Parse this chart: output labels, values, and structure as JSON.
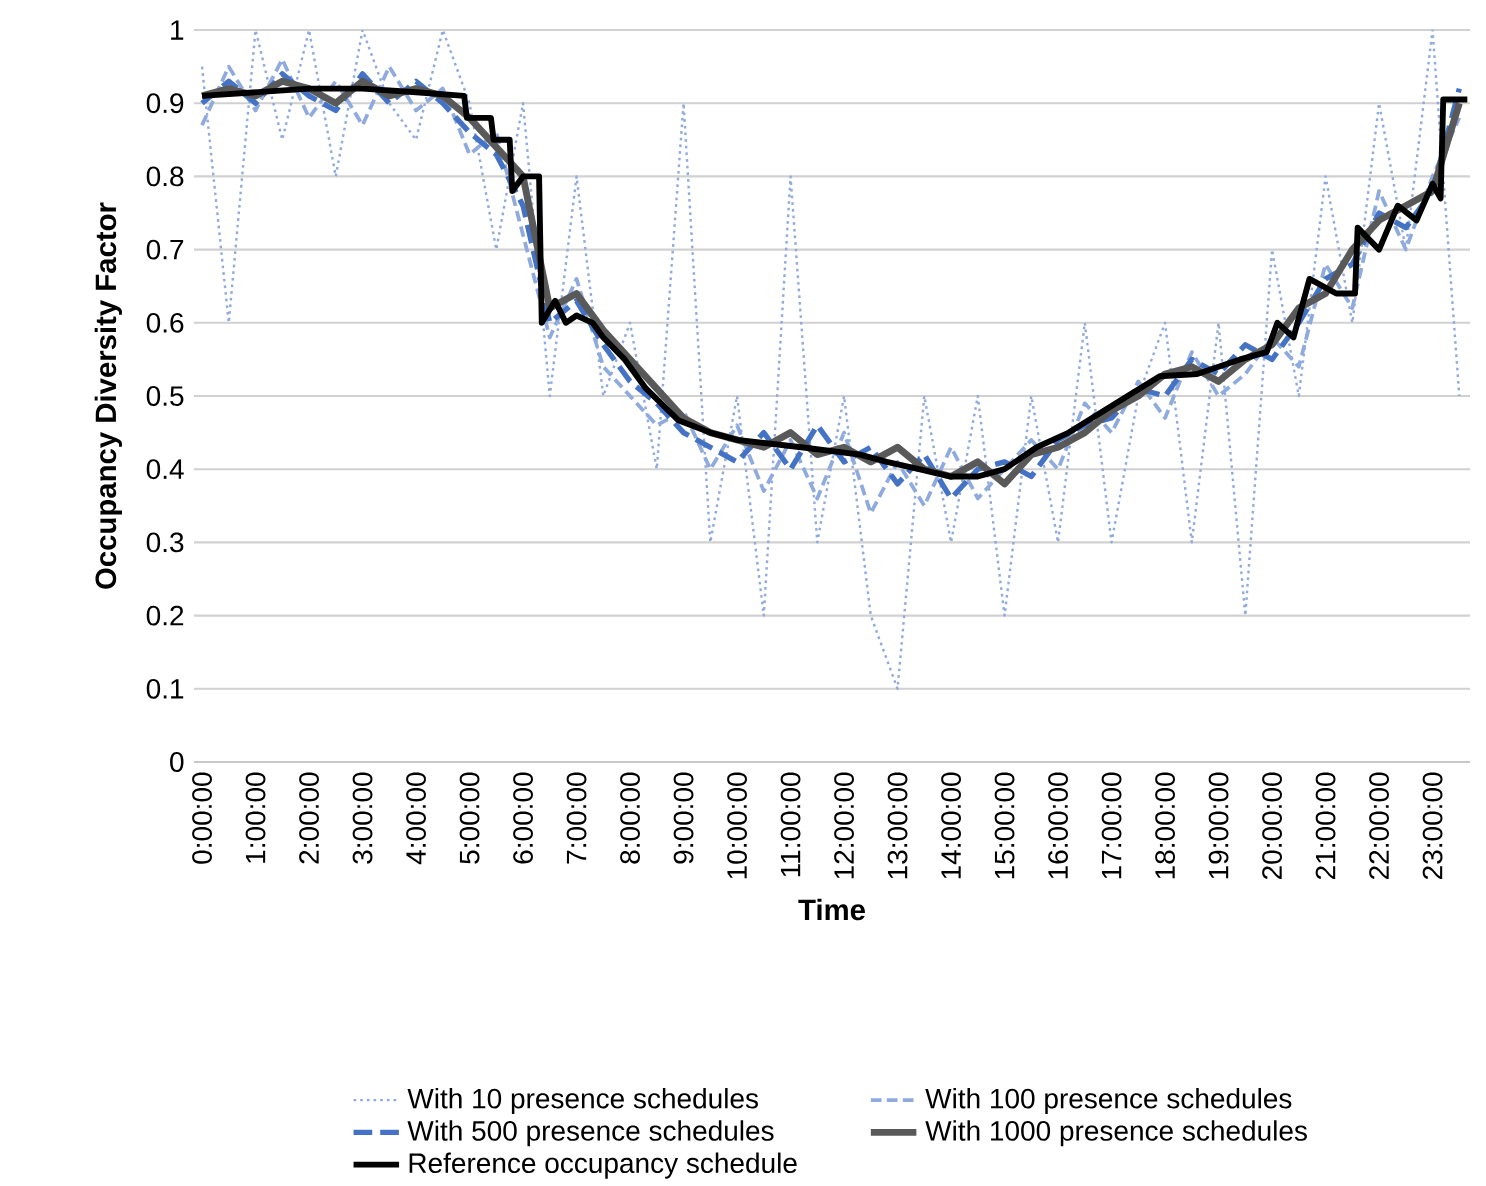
{
  "chart_data": {
    "type": "line",
    "xlabel": "Time",
    "ylabel": "Occupancy Diversity Factor",
    "x": [
      0,
      0.5,
      1,
      1.5,
      2,
      2.5,
      3,
      3.5,
      4,
      4.5,
      5,
      5.5,
      6,
      6.5,
      7,
      7.5,
      8,
      8.5,
      9,
      9.5,
      10,
      10.5,
      11,
      11.5,
      12,
      12.5,
      13,
      13.5,
      14,
      14.5,
      15,
      15.5,
      16,
      16.5,
      17,
      17.5,
      18,
      18.5,
      19,
      19.5,
      20,
      20.5,
      21,
      21.5,
      22,
      22.5,
      23,
      23.5
    ],
    "series": [
      {
        "name": "With 10 presence schedules",
        "color": "#8faadc",
        "line_style": "dotted",
        "values": [
          0.95,
          0.6,
          1.0,
          0.85,
          1.0,
          0.8,
          1.0,
          0.9,
          0.85,
          1.0,
          0.9,
          0.7,
          0.9,
          0.5,
          0.8,
          0.5,
          0.6,
          0.4,
          0.9,
          0.3,
          0.5,
          0.2,
          0.8,
          0.3,
          0.5,
          0.2,
          0.1,
          0.5,
          0.3,
          0.5,
          0.2,
          0.5,
          0.3,
          0.6,
          0.3,
          0.5,
          0.6,
          0.3,
          0.6,
          0.2,
          0.7,
          0.5,
          0.8,
          0.6,
          0.9,
          0.7,
          1.0,
          0.5
        ]
      },
      {
        "name": "With 100 presence schedules",
        "color": "#8faadc",
        "line_style": "dashed",
        "values": [
          0.87,
          0.95,
          0.89,
          0.96,
          0.88,
          0.93,
          0.87,
          0.95,
          0.89,
          0.92,
          0.83,
          0.86,
          0.72,
          0.58,
          0.66,
          0.54,
          0.5,
          0.46,
          0.48,
          0.4,
          0.46,
          0.37,
          0.44,
          0.36,
          0.45,
          0.34,
          0.41,
          0.35,
          0.43,
          0.36,
          0.4,
          0.44,
          0.4,
          0.49,
          0.45,
          0.52,
          0.47,
          0.56,
          0.5,
          0.53,
          0.58,
          0.54,
          0.68,
          0.62,
          0.78,
          0.7,
          0.8,
          0.88
        ]
      },
      {
        "name": "With 500 presence schedules",
        "color": "#4472c4",
        "line_style": "dashed",
        "values": [
          0.9,
          0.93,
          0.9,
          0.94,
          0.91,
          0.89,
          0.94,
          0.9,
          0.93,
          0.9,
          0.86,
          0.83,
          0.76,
          0.6,
          0.63,
          0.57,
          0.52,
          0.49,
          0.45,
          0.43,
          0.41,
          0.45,
          0.4,
          0.46,
          0.41,
          0.43,
          0.38,
          0.42,
          0.36,
          0.4,
          0.41,
          0.39,
          0.44,
          0.46,
          0.47,
          0.51,
          0.5,
          0.55,
          0.53,
          0.57,
          0.55,
          0.6,
          0.66,
          0.68,
          0.75,
          0.73,
          0.78,
          0.92
        ]
      },
      {
        "name": "With 1000 presence schedules",
        "color": "#595959",
        "line_style": "solid",
        "values": [
          0.91,
          0.92,
          0.91,
          0.93,
          0.92,
          0.9,
          0.93,
          0.91,
          0.92,
          0.91,
          0.88,
          0.84,
          0.8,
          0.62,
          0.64,
          0.59,
          0.55,
          0.51,
          0.47,
          0.45,
          0.44,
          0.43,
          0.45,
          0.42,
          0.43,
          0.41,
          0.43,
          0.4,
          0.39,
          0.41,
          0.38,
          0.42,
          0.43,
          0.45,
          0.48,
          0.5,
          0.53,
          0.54,
          0.52,
          0.55,
          0.57,
          0.62,
          0.64,
          0.7,
          0.74,
          0.76,
          0.78,
          0.9
        ]
      },
      {
        "name": "Reference occupancy schedule",
        "color": "#000000",
        "line_style": "solid",
        "x": [
          0,
          1,
          2,
          3,
          4,
          4.9,
          4.95,
          5.4,
          5.45,
          5.75,
          5.8,
          6.0,
          6.3,
          6.35,
          6.6,
          6.8,
          7.0,
          7.3,
          7.5,
          7.9,
          8.3,
          8.9,
          9.5,
          10.0,
          11.2,
          12.3,
          12.8,
          13.4,
          14.0,
          14.5,
          15.0,
          15.6,
          16.2,
          16.75,
          17.3,
          17.9,
          18.6,
          19.0,
          19.4,
          19.9,
          20.1,
          20.4,
          20.7,
          21.2,
          21.55,
          21.6,
          22.0,
          22.35,
          22.7,
          23.0,
          23.15,
          23.2,
          23.65
        ],
        "values": [
          0.91,
          0.915,
          0.92,
          0.92,
          0.915,
          0.91,
          0.88,
          0.88,
          0.85,
          0.85,
          0.78,
          0.8,
          0.8,
          0.6,
          0.63,
          0.6,
          0.61,
          0.6,
          0.58,
          0.55,
          0.51,
          0.467,
          0.45,
          0.44,
          0.43,
          0.42,
          0.41,
          0.4,
          0.39,
          0.39,
          0.4,
          0.43,
          0.45,
          0.475,
          0.5,
          0.527,
          0.53,
          0.54,
          0.55,
          0.56,
          0.6,
          0.58,
          0.66,
          0.64,
          0.64,
          0.73,
          0.7,
          0.76,
          0.74,
          0.79,
          0.77,
          0.905,
          0.905
        ]
      }
    ],
    "xlim": [
      -0.15,
      23.7
    ],
    "ylim": [
      0,
      1
    ],
    "xticks": [
      {
        "value": 0,
        "label": "0:00:00"
      },
      {
        "value": 1,
        "label": "1:00:00"
      },
      {
        "value": 2,
        "label": "2:00:00"
      },
      {
        "value": 3,
        "label": "3:00:00"
      },
      {
        "value": 4,
        "label": "4:00:00"
      },
      {
        "value": 5,
        "label": "5:00:00"
      },
      {
        "value": 6,
        "label": "6:00:00"
      },
      {
        "value": 7,
        "label": "7:00:00"
      },
      {
        "value": 8,
        "label": "8:00:00"
      },
      {
        "value": 9,
        "label": "9:00:00"
      },
      {
        "value": 10,
        "label": "10:00:00"
      },
      {
        "value": 11,
        "label": "11:00:00"
      },
      {
        "value": 12,
        "label": "12:00:00"
      },
      {
        "value": 13,
        "label": "13:00:00"
      },
      {
        "value": 14,
        "label": "14:00:00"
      },
      {
        "value": 15,
        "label": "15:00:00"
      },
      {
        "value": 16,
        "label": "16:00:00"
      },
      {
        "value": 17,
        "label": "17:00:00"
      },
      {
        "value": 18,
        "label": "18:00:00"
      },
      {
        "value": 19,
        "label": "19:00:00"
      },
      {
        "value": 20,
        "label": "20:00:00"
      },
      {
        "value": 21,
        "label": "21:00:00"
      },
      {
        "value": 22,
        "label": "22:00:00"
      },
      {
        "value": 23,
        "label": "23:00:00"
      }
    ],
    "yticks": [
      0,
      0.1,
      0.2,
      0.3,
      0.4,
      0.5,
      0.6,
      0.7,
      0.8,
      0.9,
      1
    ],
    "grid": "y",
    "legend": "bottom",
    "marker": "none"
  }
}
